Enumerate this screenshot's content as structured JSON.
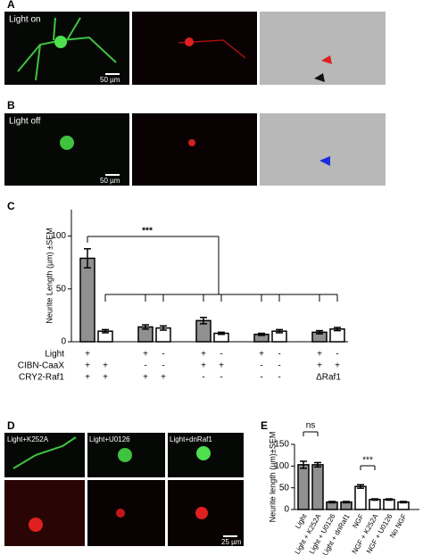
{
  "panels": [
    {
      "label": "A",
      "caption": "Light on",
      "scale": "50 µm"
    },
    {
      "label": "B",
      "caption": "Light off",
      "scale": "50 µm"
    },
    {
      "label": "C"
    },
    {
      "label": "D",
      "captions": [
        "Light+K252A",
        "Light+U0126",
        "Light+dnRaf1"
      ],
      "scale": "25 µm"
    },
    {
      "label": "E"
    }
  ],
  "chart_data": [
    {
      "type": "bar",
      "ylabel": "Neurite Length (µm) ±SEM",
      "ylim": [
        0,
        125
      ],
      "yticks": [
        0,
        50,
        100
      ],
      "values": [
        79,
        10,
        14,
        13,
        20,
        8,
        7,
        10,
        9,
        12
      ],
      "errors": [
        9,
        1.5,
        2,
        2,
        3,
        1,
        1,
        1.5,
        1.5,
        1.5
      ],
      "colors": [
        "#909090",
        "#ffffff",
        "#909090",
        "#ffffff",
        "#909090",
        "#ffffff",
        "#909090",
        "#ffffff",
        "#909090",
        "#ffffff"
      ],
      "annotation": "***",
      "rows": [
        {
          "label": "Light",
          "marks": [
            "+",
            null,
            "+",
            "-",
            "+",
            "-",
            "+",
            "-",
            "+",
            "-"
          ]
        },
        {
          "label": "CIBN-CaaX",
          "marks": [
            "+",
            "+",
            "-",
            "-",
            "+",
            "+",
            "-",
            "-",
            "+",
            "+"
          ]
        },
        {
          "label": "CRY2-Raf1",
          "marks": [
            "+",
            "+",
            "+",
            "+",
            "-",
            "-",
            "-",
            "-",
            "ΔRaf1",
            null
          ]
        }
      ]
    },
    {
      "type": "bar",
      "ylabel": "Neurite length (µm)±SEM",
      "ylim": [
        0,
        150
      ],
      "yticks": [
        0,
        50,
        100,
        150
      ],
      "categories": [
        "Light",
        "Light + K252A",
        "Light + U0126",
        "Light + dnRaf1",
        "NGF",
        "NGF + K252A",
        "NGF + U0126",
        "No NGF"
      ],
      "values": [
        103,
        103,
        17,
        17,
        53,
        23,
        23,
        17
      ],
      "errors": [
        8,
        5,
        1.5,
        1.5,
        4,
        1.5,
        1.5,
        1.5
      ],
      "colors": [
        "#909090",
        "#909090",
        "#909090",
        "#909090",
        "#ffffff",
        "#ffffff",
        "#ffffff",
        "#ffffff"
      ],
      "annotations": [
        "ns",
        "***"
      ]
    }
  ]
}
